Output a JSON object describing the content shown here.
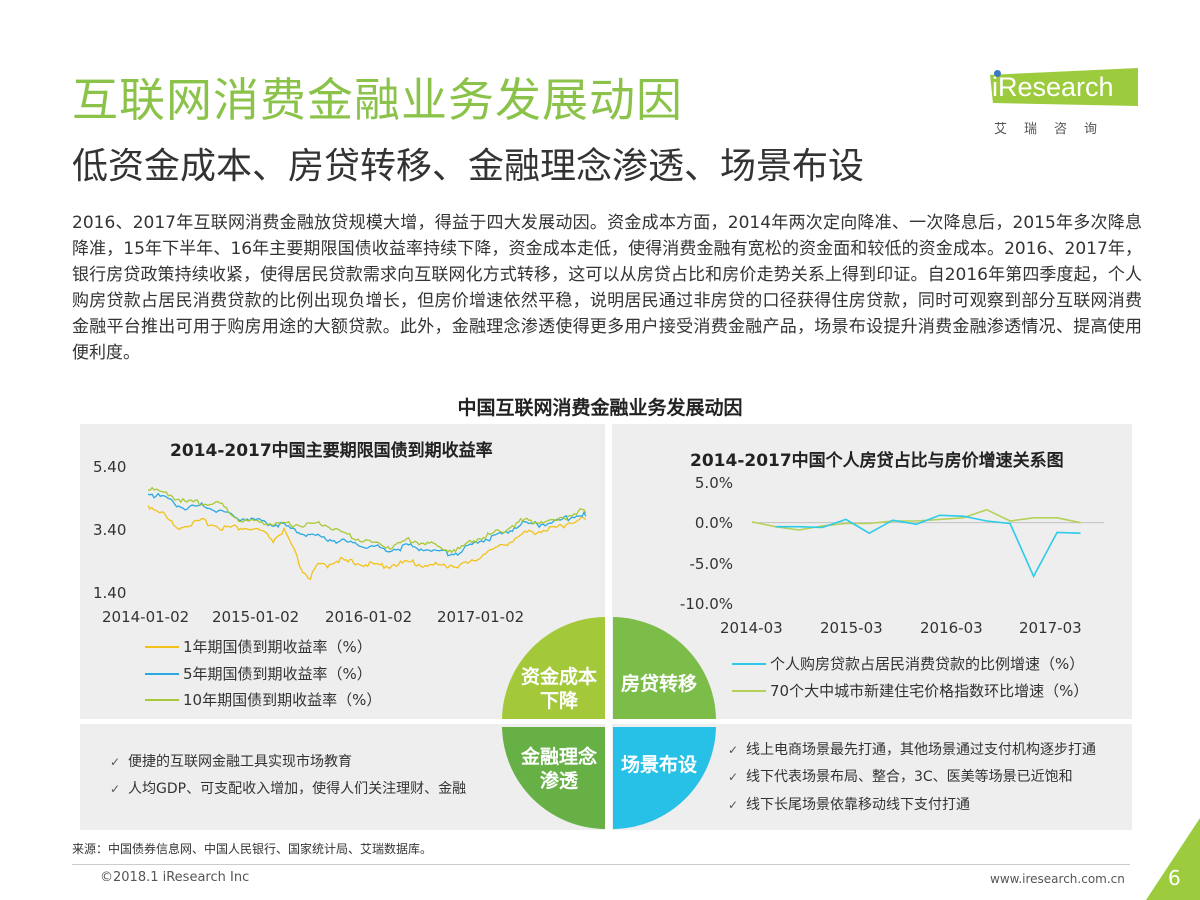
{
  "header": {
    "title": "互联网消费金融业务发展动因",
    "subtitle": "低资金成本、房贷转移、金融理念渗透、场景布设"
  },
  "logo": {
    "text": "iResearch",
    "cn": "艾瑞咨询"
  },
  "paragraph": "2016、2017年互联网消费金融放贷规模大增，得益于四大发展动因。资金成本方面，2014年两次定向降准、一次降息后，2015年多次降息降准，15年下半年、16年主要期限国债收益率持续下降，资金成本走低，使得消费金融有宽松的资金面和较低的资金成本。2016、2017年，银行房贷政策持续收紧，使得居民贷款需求向互联网化方式转移，这可以从房贷占比和房价走势关系上得到印证。自2016年第四季度起，个人购房贷款占居民消费贷款的比例出现负增长，但房价增速依然平稳，说明居民通过非房贷的口径获得住房贷款，同时可观察到部分互联网消费金融平台推出可用于购房用途的大额贷款。此外，金融理念渗透使得更多用户接受消费金融产品，场景布设提升消费金融渗透情况、提高使用便利度。",
  "main_title": "中国互联网消费金融业务发展动因",
  "quadrants": {
    "q1": "资金成本\n下降",
    "q2": "房贷转移",
    "q3": "金融理念\n渗透",
    "q4": "场景布设",
    "colors": {
      "q1": "#a3c93a",
      "q2": "#7cbd4a",
      "q3": "#66b046",
      "q4": "#27c0e6"
    }
  },
  "bullets_left": [
    "便捷的互联网金融工具实现市场教育",
    "人均GDP、可支配收入增加，使得人们关注理财、金融"
  ],
  "bullets_right": [
    "线上电商场景最先打通，其他场景通过支付机构逐步打通",
    "线下代表场景布局、整合，3C、医美等场景已近饱和",
    "线下长尾场景依靠移动线下支付打通"
  ],
  "footer": {
    "source": "来源：中国债券信息网、中国人民银行、国家统计局、艾瑞数据库。",
    "copyright": "©2018.1 iResearch Inc",
    "url": "www.iresearch.com.cn",
    "page": "6"
  },
  "chart_data": [
    {
      "type": "line",
      "title": "2014-2017中国主要期限国债到期收益率",
      "x_ticks": [
        "2014-01-02",
        "2015-01-02",
        "2016-01-02",
        "2017-01-02"
      ],
      "y_ticks": [
        "5.40",
        "3.40",
        "1.40"
      ],
      "ylim": [
        1.4,
        5.4
      ],
      "series": [
        {
          "name": "1年期国债到期收益率（%）",
          "color": "#f2c21b",
          "points": [
            [
              "2014-01-02",
              4.1
            ],
            [
              "2014-02-15",
              3.9
            ],
            [
              "2014-04-01",
              3.4
            ],
            [
              "2014-05-15",
              3.5
            ],
            [
              "2014-07-01",
              3.6
            ],
            [
              "2014-09-01",
              3.4
            ],
            [
              "2014-11-01",
              3.4
            ],
            [
              "2015-01-02",
              3.3
            ],
            [
              "2015-02-15",
              3.0
            ],
            [
              "2015-03-20",
              3.3
            ],
            [
              "2015-04-20",
              2.7
            ],
            [
              "2015-05-15",
              2.1
            ],
            [
              "2015-06-01",
              1.9
            ],
            [
              "2015-06-15",
              1.8
            ],
            [
              "2015-07-10",
              2.2
            ],
            [
              "2015-08-10",
              2.2
            ],
            [
              "2015-09-10",
              2.4
            ],
            [
              "2015-10-10",
              2.3
            ],
            [
              "2015-11-10",
              2.3
            ],
            [
              "2016-01-02",
              2.2
            ],
            [
              "2016-03-01",
              2.2
            ],
            [
              "2016-05-01",
              2.3
            ],
            [
              "2016-07-01",
              2.2
            ],
            [
              "2016-09-01",
              2.2
            ],
            [
              "2016-10-15",
              2.2
            ],
            [
              "2016-12-01",
              2.3
            ],
            [
              "2017-01-02",
              2.6
            ],
            [
              "2017-03-01",
              2.8
            ],
            [
              "2017-04-01",
              3.0
            ],
            [
              "2017-05-15",
              3.2
            ],
            [
              "2017-07-01",
              3.3
            ],
            [
              "2017-09-01",
              3.4
            ],
            [
              "2017-10-15",
              3.6
            ],
            [
              "2017-12-01",
              3.7
            ]
          ]
        },
        {
          "name": "5年期国债到期收益率（%）",
          "color": "#2ca9e1",
          "points": [
            [
              "2014-01-02",
              4.5
            ],
            [
              "2014-03-01",
              4.3
            ],
            [
              "2014-05-01",
              4.0
            ],
            [
              "2014-07-01",
              4.1
            ],
            [
              "2014-09-01",
              3.9
            ],
            [
              "2014-11-01",
              3.7
            ],
            [
              "2015-01-02",
              3.6
            ],
            [
              "2015-03-01",
              3.5
            ],
            [
              "2015-05-01",
              3.3
            ],
            [
              "2015-06-01",
              3.2
            ],
            [
              "2015-07-15",
              3.1
            ],
            [
              "2015-09-01",
              3.0
            ],
            [
              "2015-11-01",
              2.9
            ],
            [
              "2016-01-02",
              2.8
            ],
            [
              "2016-03-01",
              2.7
            ],
            [
              "2016-05-01",
              2.8
            ],
            [
              "2016-07-01",
              2.7
            ],
            [
              "2016-09-01",
              2.6
            ],
            [
              "2016-10-15",
              2.6
            ],
            [
              "2016-12-01",
              2.9
            ],
            [
              "2017-01-02",
              3.0
            ],
            [
              "2017-03-01",
              3.2
            ],
            [
              "2017-05-01",
              3.5
            ],
            [
              "2017-07-01",
              3.5
            ],
            [
              "2017-09-01",
              3.6
            ],
            [
              "2017-11-01",
              3.8
            ],
            [
              "2017-12-01",
              3.8
            ]
          ]
        },
        {
          "name": "10年期国债到期收益率（%）",
          "color": "#a8c837",
          "points": [
            [
              "2014-01-02",
              4.6
            ],
            [
              "2014-03-01",
              4.5
            ],
            [
              "2014-05-01",
              4.2
            ],
            [
              "2014-07-01",
              4.2
            ],
            [
              "2014-09-01",
              4.1
            ],
            [
              "2014-11-01",
              3.6
            ],
            [
              "2015-01-02",
              3.6
            ],
            [
              "2015-03-01",
              3.5
            ],
            [
              "2015-05-01",
              3.5
            ],
            [
              "2015-06-15",
              3.5
            ],
            [
              "2015-08-01",
              3.5
            ],
            [
              "2015-10-01",
              3.2
            ],
            [
              "2015-12-01",
              3.0
            ],
            [
              "2016-01-02",
              2.9
            ],
            [
              "2016-03-01",
              2.8
            ],
            [
              "2016-05-01",
              3.0
            ],
            [
              "2016-07-01",
              2.9
            ],
            [
              "2016-09-01",
              2.7
            ],
            [
              "2016-10-15",
              2.7
            ],
            [
              "2016-12-01",
              3.0
            ],
            [
              "2017-01-02",
              3.1
            ],
            [
              "2017-03-01",
              3.3
            ],
            [
              "2017-05-01",
              3.6
            ],
            [
              "2017-07-01",
              3.6
            ],
            [
              "2017-09-01",
              3.6
            ],
            [
              "2017-11-01",
              3.9
            ],
            [
              "2017-12-01",
              3.9
            ]
          ]
        }
      ]
    },
    {
      "type": "line",
      "title": "2014-2017中国个人房贷占比与房价增速关系图",
      "x_ticks": [
        "2014-03",
        "2015-03",
        "2016-03",
        "2017-03"
      ],
      "y_ticks": [
        "5.0%",
        "0.0%",
        "-5.0%",
        "-10.0%"
      ],
      "ylim": [
        -10,
        5
      ],
      "series": [
        {
          "name": "个人购房贷款占居民消费贷款的比例增速（%）",
          "color": "#2ccbe8",
          "points": [
            [
              "2014-06",
              -0.5
            ],
            [
              "2014-09",
              -0.5
            ],
            [
              "2014-12",
              -0.6
            ],
            [
              "2015-03",
              0.4
            ],
            [
              "2015-06",
              -1.3
            ],
            [
              "2015-09",
              0.3
            ],
            [
              "2015-12",
              -0.2
            ],
            [
              "2016-03",
              0.9
            ],
            [
              "2016-06",
              0.8
            ],
            [
              "2016-09",
              0.2
            ],
            [
              "2016-12",
              -0.1
            ],
            [
              "2017-03",
              -6.6
            ],
            [
              "2017-06",
              -1.2
            ],
            [
              "2017-09",
              -1.3
            ]
          ]
        },
        {
          "name": "70个大中城市新建住宅价格指数环比增速（%）",
          "color": "#b5d158",
          "points": [
            [
              "2014-03",
              0.1
            ],
            [
              "2014-06",
              -0.5
            ],
            [
              "2014-09",
              -0.9
            ],
            [
              "2014-12",
              -0.4
            ],
            [
              "2015-03",
              -0.1
            ],
            [
              "2015-06",
              -0.1
            ],
            [
              "2015-09",
              0.2
            ],
            [
              "2015-12",
              0.2
            ],
            [
              "2016-03",
              0.4
            ],
            [
              "2016-06",
              0.6
            ],
            [
              "2016-09",
              1.6
            ],
            [
              "2016-12",
              0.2
            ],
            [
              "2017-03",
              0.6
            ],
            [
              "2017-06",
              0.6
            ],
            [
              "2017-09",
              0.0
            ]
          ]
        }
      ]
    }
  ]
}
